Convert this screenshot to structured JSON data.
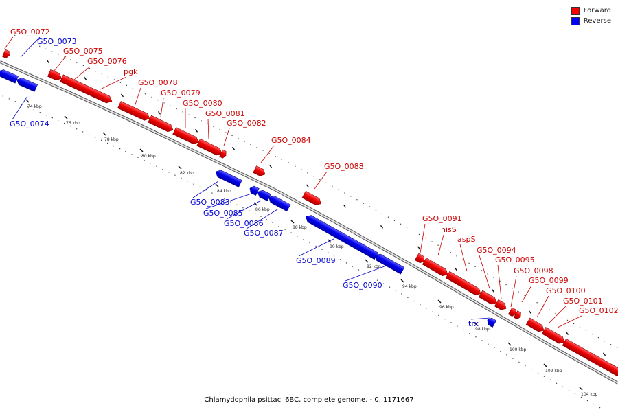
{
  "caption": "Chlamydophila psittaci 6BC, complete genome. - 0..1171667",
  "legend": [
    {
      "label": "Forward",
      "color": "#ff0000"
    },
    {
      "label": "Reverse",
      "color": "#0000ff"
    }
  ],
  "colors": {
    "forward": "#ff0000",
    "reverse": "#0000ff",
    "forward_label": "#cc0000",
    "reverse_label": "#0000cc",
    "backbone": "#888888"
  },
  "tick_labels": [
    "74 kbp",
    "76 kbp",
    "78 kbp",
    "80 kbp",
    "82 kbp",
    "84 kbp",
    "86 kbp",
    "88 kbp",
    "90 kbp",
    "92 kbp",
    "94 kbp",
    "96 kbp",
    "98 kbp",
    "100 kbp",
    "102 kbp",
    "104 kbp"
  ],
  "genes": [
    {
      "label": "G5O_0072",
      "strand": "forward"
    },
    {
      "label": "G5O_0073",
      "strand": "reverse"
    },
    {
      "label": "G5O_0074",
      "strand": "reverse"
    },
    {
      "label": "G5O_0075",
      "strand": "forward"
    },
    {
      "label": "G5O_0076",
      "strand": "forward"
    },
    {
      "label": "pgk",
      "strand": "forward"
    },
    {
      "label": "G5O_0078",
      "strand": "forward"
    },
    {
      "label": "G5O_0079",
      "strand": "forward"
    },
    {
      "label": "G5O_0080",
      "strand": "forward"
    },
    {
      "label": "G5O_0081",
      "strand": "forward"
    },
    {
      "label": "G5O_0082",
      "strand": "forward"
    },
    {
      "label": "G5O_0083",
      "strand": "reverse"
    },
    {
      "label": "G5O_0084",
      "strand": "forward"
    },
    {
      "label": "G5O_0085",
      "strand": "reverse"
    },
    {
      "label": "G5O_0086",
      "strand": "reverse"
    },
    {
      "label": "G5O_0087",
      "strand": "reverse"
    },
    {
      "label": "G5O_0088",
      "strand": "forward"
    },
    {
      "label": "G5O_0089",
      "strand": "reverse"
    },
    {
      "label": "G5O_0090",
      "strand": "reverse"
    },
    {
      "label": "G5O_0091",
      "strand": "forward"
    },
    {
      "label": "hisS",
      "strand": "forward"
    },
    {
      "label": "aspS",
      "strand": "forward"
    },
    {
      "label": "G5O_0094",
      "strand": "forward"
    },
    {
      "label": "G5O_0095",
      "strand": "forward"
    },
    {
      "label": "trx",
      "strand": "reverse"
    },
    {
      "label": "G5O_0098",
      "strand": "forward"
    },
    {
      "label": "G5O_0099",
      "strand": "forward"
    },
    {
      "label": "G5O_0100",
      "strand": "forward"
    },
    {
      "label": "G5O_0101",
      "strand": "forward"
    },
    {
      "label": "G5O_0102",
      "strand": "forward"
    }
  ]
}
